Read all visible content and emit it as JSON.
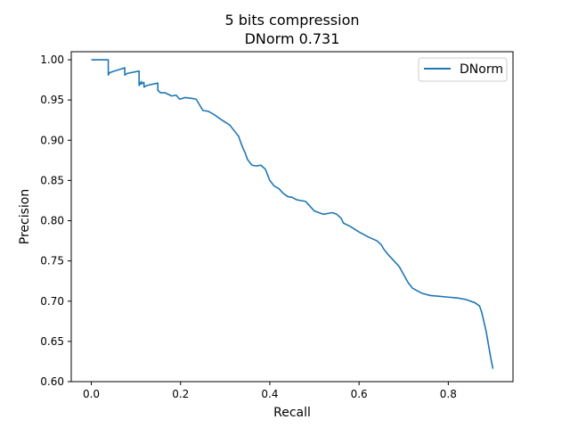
{
  "chart_data": {
    "type": "line",
    "title": "5 bits compression",
    "subtitle": "DNorm 0.731",
    "xlabel": "Recall",
    "ylabel": "Precision",
    "xlim": [
      -0.045,
      0.945
    ],
    "ylim": [
      0.6,
      1.01
    ],
    "x_ticks": [
      0.0,
      0.2,
      0.4,
      0.6,
      0.8
    ],
    "x_tick_labels": [
      "0.0",
      "0.2",
      "0.4",
      "0.6",
      "0.8"
    ],
    "y_ticks": [
      0.6,
      0.65,
      0.7,
      0.75,
      0.8,
      0.85,
      0.9,
      0.95,
      1.0
    ],
    "y_tick_labels": [
      "0.60",
      "0.65",
      "0.70",
      "0.75",
      "0.80",
      "0.85",
      "0.90",
      "0.95",
      "1.00"
    ],
    "grid": false,
    "legend": {
      "position": "top-right",
      "entries": [
        "DNorm"
      ]
    },
    "colors": {
      "series": "#1f77b4",
      "axes": "#000000",
      "background": "#ffffff"
    },
    "series": [
      {
        "name": "DNorm",
        "x": [
          0.0,
          0.038,
          0.038,
          0.041,
          0.075,
          0.075,
          0.08,
          0.107,
          0.107,
          0.112,
          0.112,
          0.118,
          0.118,
          0.124,
          0.149,
          0.149,
          0.155,
          0.165,
          0.18,
          0.19,
          0.198,
          0.21,
          0.225,
          0.235,
          0.25,
          0.262,
          0.275,
          0.29,
          0.31,
          0.32,
          0.33,
          0.335,
          0.34,
          0.345,
          0.35,
          0.36,
          0.37,
          0.38,
          0.39,
          0.395,
          0.4,
          0.41,
          0.42,
          0.43,
          0.44,
          0.45,
          0.46,
          0.48,
          0.49,
          0.5,
          0.51,
          0.52,
          0.53,
          0.54,
          0.55,
          0.56,
          0.565,
          0.58,
          0.6,
          0.62,
          0.64,
          0.65,
          0.655,
          0.665,
          0.675,
          0.69,
          0.7,
          0.71,
          0.72,
          0.74,
          0.76,
          0.78,
          0.8,
          0.82,
          0.84,
          0.86,
          0.87,
          0.875,
          0.88,
          0.885,
          0.89,
          0.895,
          0.9
        ],
        "y": [
          1.0,
          1.0,
          0.981,
          0.984,
          0.99,
          0.981,
          0.983,
          0.986,
          0.968,
          0.973,
          0.97,
          0.972,
          0.966,
          0.968,
          0.971,
          0.962,
          0.959,
          0.959,
          0.955,
          0.956,
          0.951,
          0.953,
          0.952,
          0.951,
          0.937,
          0.936,
          0.932,
          0.926,
          0.919,
          0.912,
          0.905,
          0.897,
          0.89,
          0.884,
          0.876,
          0.869,
          0.868,
          0.869,
          0.864,
          0.857,
          0.85,
          0.843,
          0.84,
          0.834,
          0.83,
          0.829,
          0.826,
          0.824,
          0.818,
          0.812,
          0.81,
          0.808,
          0.809,
          0.81,
          0.808,
          0.803,
          0.797,
          0.793,
          0.786,
          0.78,
          0.775,
          0.77,
          0.765,
          0.758,
          0.752,
          0.743,
          0.733,
          0.723,
          0.716,
          0.71,
          0.707,
          0.706,
          0.705,
          0.704,
          0.702,
          0.698,
          0.694,
          0.686,
          0.674,
          0.662,
          0.646,
          0.63,
          0.616
        ]
      }
    ]
  }
}
